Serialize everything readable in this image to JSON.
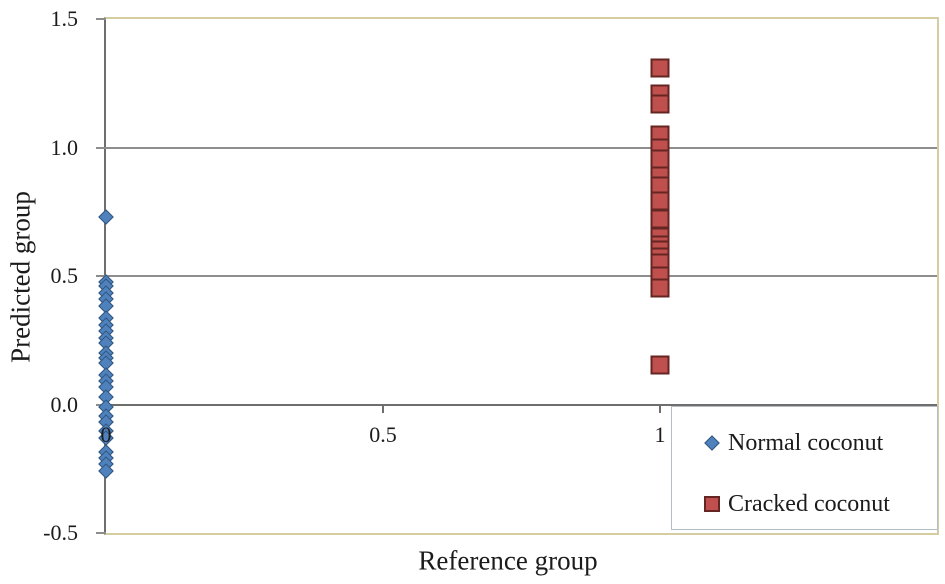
{
  "chart_data": {
    "type": "scatter",
    "title": "",
    "xlabel": "Reference group",
    "ylabel": "Predicted group",
    "xlim": [
      0,
      1.5
    ],
    "ylim": [
      -0.5,
      1.5
    ],
    "xticks": [
      0,
      0.5,
      1
    ],
    "xtick_labels": [
      "0",
      "0.5",
      "1"
    ],
    "yticks": [
      1.5,
      1.0,
      0.5,
      0.0,
      -0.5
    ],
    "ytick_labels": [
      "1.5",
      "1.0",
      "0.5",
      "0.0",
      "-0.5"
    ],
    "gridlines_y": [
      1.0,
      0.5
    ],
    "x_axis_at_y": 0,
    "grid": true,
    "legend_position": "bottom-right",
    "series": [
      {
        "name": "Normal coconut",
        "marker": "diamond",
        "fill_color": "#4f81bd",
        "border_color": "#31567e",
        "x": 0,
        "y": [
          0.73,
          0.475,
          0.46,
          0.435,
          0.41,
          0.385,
          0.335,
          0.31,
          0.285,
          0.26,
          0.24,
          0.2,
          0.18,
          0.16,
          0.115,
          0.09,
          0.07,
          0.03,
          -0.01,
          -0.045,
          -0.07,
          -0.105,
          -0.13,
          -0.185,
          -0.21,
          -0.23,
          -0.26
        ]
      },
      {
        "name": "Cracked coconut",
        "marker": "square",
        "fill_color": "#c0504d",
        "border_color": "#652523",
        "x": 1,
        "y": [
          1.31,
          1.21,
          1.17,
          1.05,
          1.0,
          0.955,
          0.89,
          0.85,
          0.79,
          0.72,
          0.65,
          0.62,
          0.6,
          0.575,
          0.55,
          0.5,
          0.455,
          0.155
        ]
      }
    ]
  },
  "colors": {
    "axis": "#6e6e6e",
    "gridline": "#8d8d8d",
    "plot_border": "#d5cda1",
    "legend_border": "#b4bdc6",
    "text": "#1b1b1b",
    "background": "#ffffff"
  }
}
